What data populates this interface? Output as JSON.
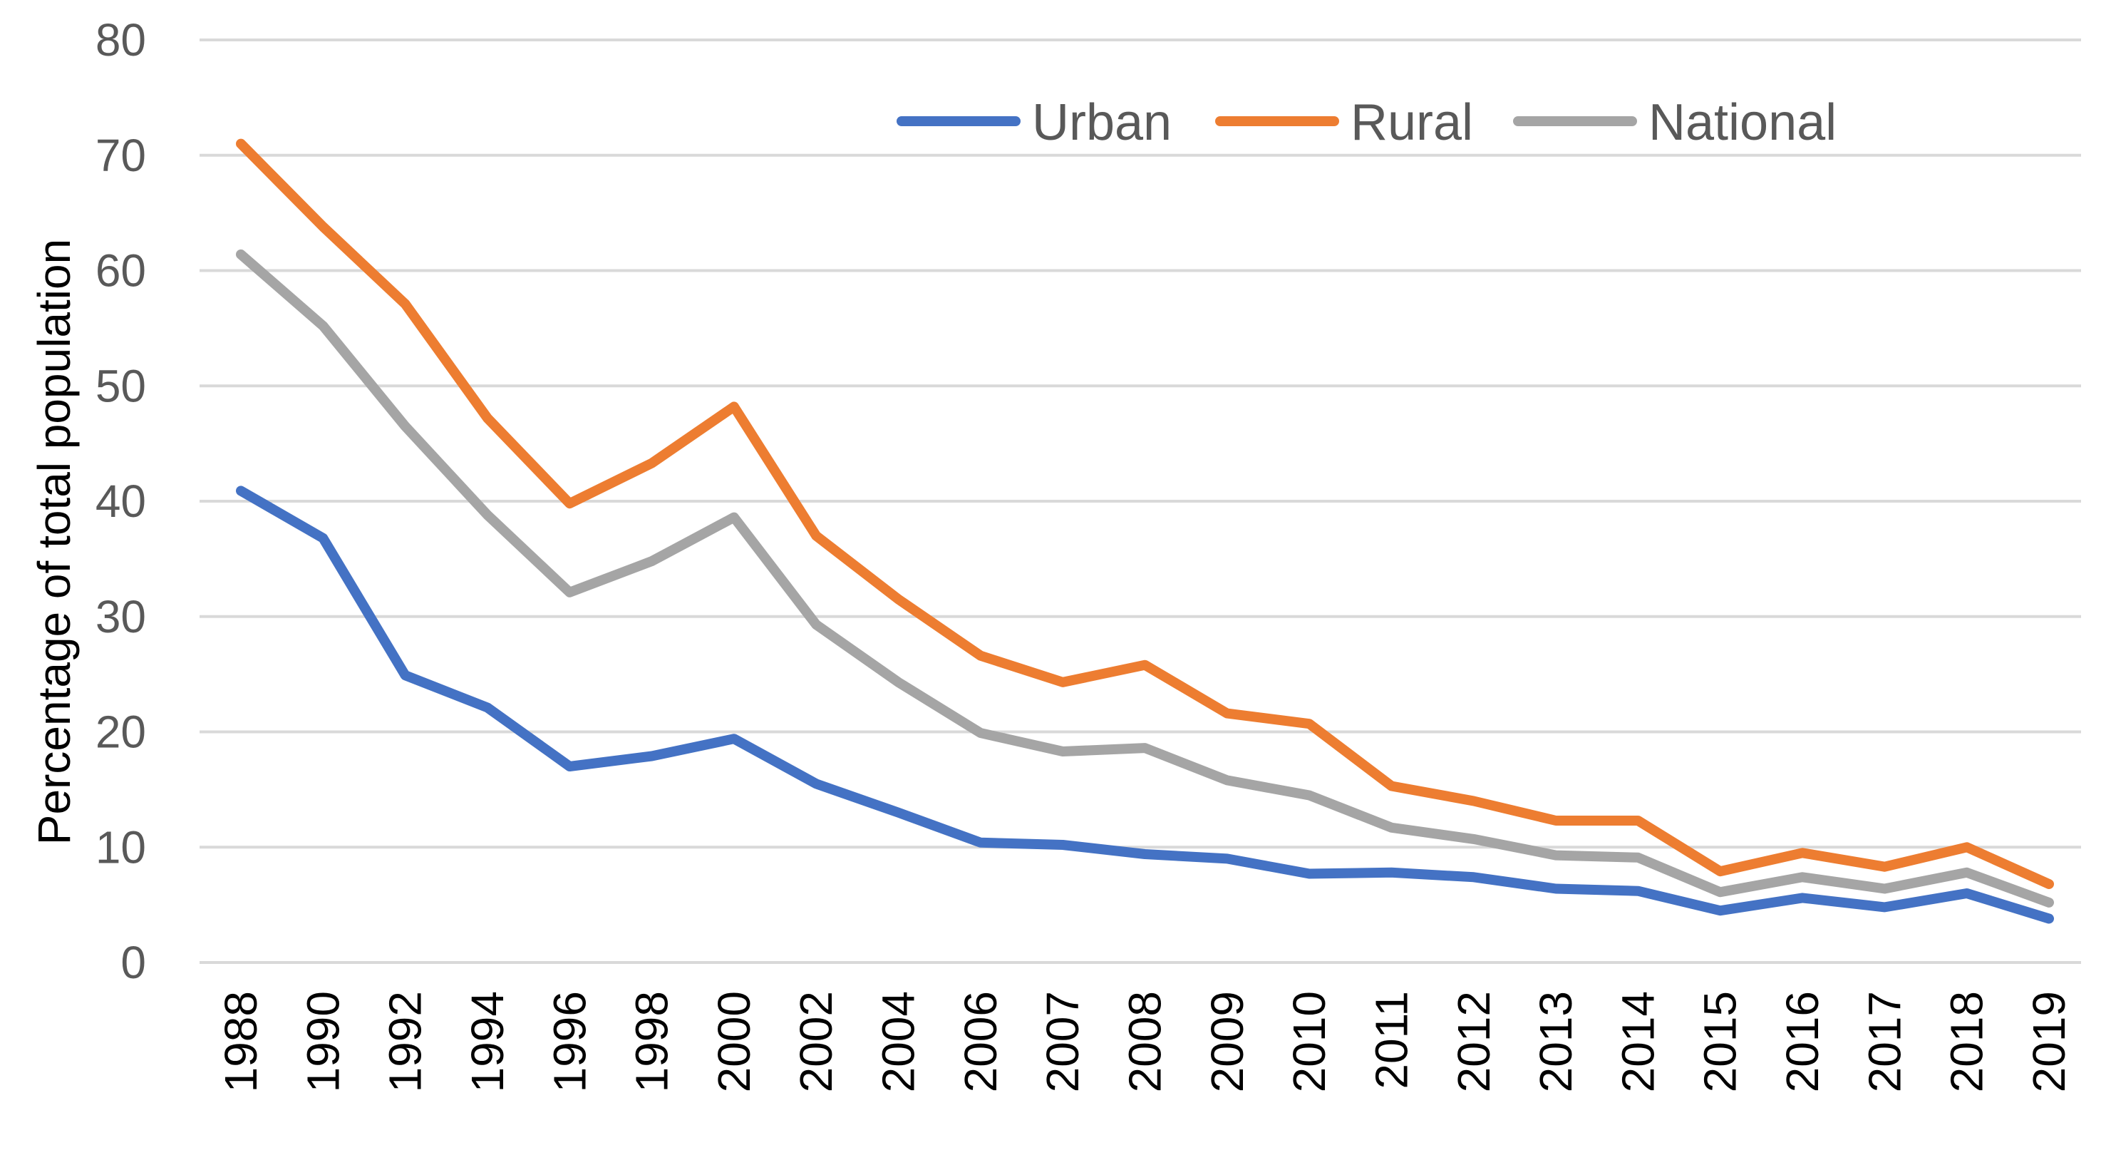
{
  "chart_data": {
    "type": "line",
    "title": "",
    "xlabel": "",
    "ylabel": "Percentage of total population",
    "ylim": [
      0,
      80
    ],
    "yticks": [
      0,
      10,
      20,
      30,
      40,
      50,
      60,
      70,
      80
    ],
    "grid": true,
    "legend_position": "top-right",
    "categories": [
      "1988",
      "1990",
      "1992",
      "1994",
      "1996",
      "1998",
      "2000",
      "2002",
      "2004",
      "2006",
      "2007",
      "2008",
      "2009",
      "2010",
      "2011",
      "2012",
      "2013",
      "2014",
      "2015",
      "2016",
      "2017",
      "2018",
      "2019"
    ],
    "series": [
      {
        "name": "Urban",
        "color": "#4472c4",
        "values": [
          40.9,
          36.8,
          24.9,
          22.1,
          17.0,
          17.9,
          19.4,
          15.5,
          13.0,
          10.4,
          10.2,
          9.4,
          9.0,
          7.7,
          7.8,
          7.4,
          6.4,
          6.2,
          4.5,
          5.6,
          4.8,
          6.0,
          3.8
        ]
      },
      {
        "name": "Rural",
        "color": "#ed7d31",
        "values": [
          71.0,
          63.8,
          57.1,
          47.2,
          39.8,
          43.3,
          48.2,
          37.0,
          31.5,
          26.6,
          24.3,
          25.8,
          21.6,
          20.7,
          15.3,
          14.0,
          12.3,
          12.3,
          7.9,
          9.5,
          8.3,
          10.0,
          6.8
        ]
      },
      {
        "name": "National",
        "color": "#a5a5a5",
        "values": [
          61.4,
          55.2,
          46.5,
          38.8,
          32.1,
          34.8,
          38.6,
          29.3,
          24.3,
          19.9,
          18.3,
          18.6,
          15.8,
          14.5,
          11.7,
          10.7,
          9.3,
          9.1,
          6.1,
          7.4,
          6.4,
          7.8,
          5.2
        ]
      }
    ]
  }
}
